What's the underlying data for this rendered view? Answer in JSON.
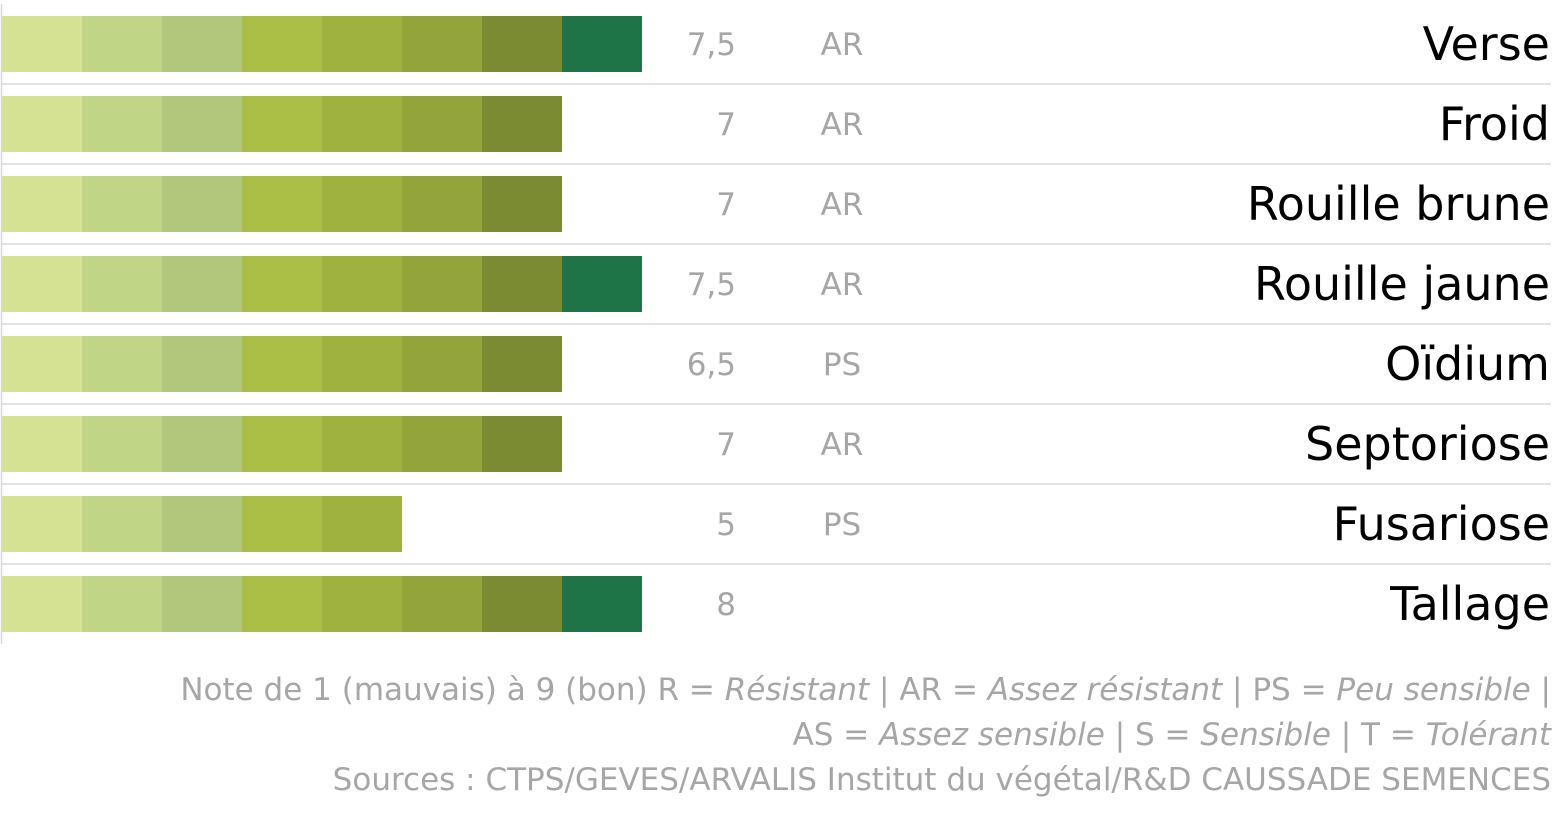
{
  "chart_data": {
    "type": "bar",
    "orientation": "horizontal",
    "scale_max": 9,
    "segment_colors": [
      "#d5e193",
      "#c0d686",
      "#b1c77c",
      "#abbe45",
      "#9fb23f",
      "#92a43a",
      "#7b8b31",
      "#1f7447",
      "#1f7447"
    ],
    "categories": [
      "Verse",
      "Froid",
      "Rouille brune",
      "Rouille jaune",
      "Oïdium",
      "Septoriose",
      "Fusariose",
      "Tallage"
    ],
    "values": [
      7.5,
      7,
      7,
      7.5,
      6.5,
      7,
      5,
      8
    ],
    "value_labels": [
      "7,5",
      "7",
      "7",
      "7,5",
      "6,5",
      "7",
      "5",
      "8"
    ],
    "codes": [
      "AR",
      "AR",
      "AR",
      "AR",
      "PS",
      "AR",
      "PS",
      ""
    ]
  },
  "footnote": {
    "line1_a": "Note de 1 (mauvais) à 9 (bon) R = ",
    "line1_b": "Résistant",
    "line1_c": " | AR = ",
    "line1_d": "Assez résistant",
    "line1_e": " | PS = ",
    "line1_f": "Peu sensible",
    "line1_g": " |",
    "line2_a": "AS = ",
    "line2_b": "Assez sensible",
    "line2_c": " | S = ",
    "line2_d": "Sensible",
    "line2_e": " | T = ",
    "line2_f": "Tolérant",
    "line3": "Sources : CTPS/GEVES/ARVALIS Institut du végétal/R&D CAUSSADE SEMENCES"
  }
}
